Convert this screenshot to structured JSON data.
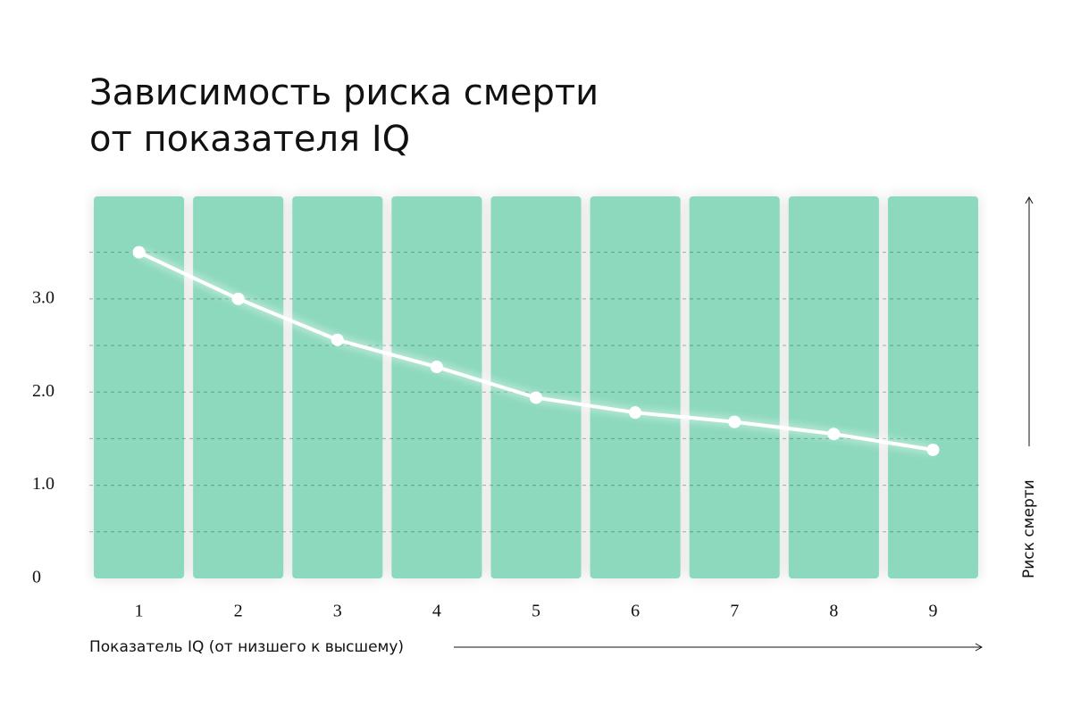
{
  "chart_data": {
    "type": "line",
    "title": [
      "Зависимость риска смерти",
      "от показателя IQ"
    ],
    "x_label": "Показатель IQ (от низшего к высшему)",
    "y_label": "Риск смерти",
    "x": [
      1,
      2,
      3,
      4,
      5,
      6,
      7,
      8,
      9
    ],
    "xlim": [
      0.5,
      9.5
    ],
    "xticks": [
      1,
      2,
      3,
      4,
      5,
      6,
      7,
      8,
      9
    ],
    "series": [
      {
        "values": [
          3.5,
          3.0,
          2.56,
          2.27,
          1.94,
          1.78,
          1.68,
          1.55,
          1.38
        ],
        "color": "#ffffff"
      }
    ],
    "ylim": [
      0,
      4.1
    ],
    "yticks": [
      0,
      {
        "value": 1,
        "label": "1.0"
      },
      {
        "value": 2,
        "label": "2.0"
      },
      {
        "value": 3,
        "label": "3.0"
      }
    ],
    "grid_lines": [
      0.5,
      1,
      1.5,
      2,
      2.5,
      3,
      3.5
    ],
    "band_color": "#8dd9bd"
  }
}
